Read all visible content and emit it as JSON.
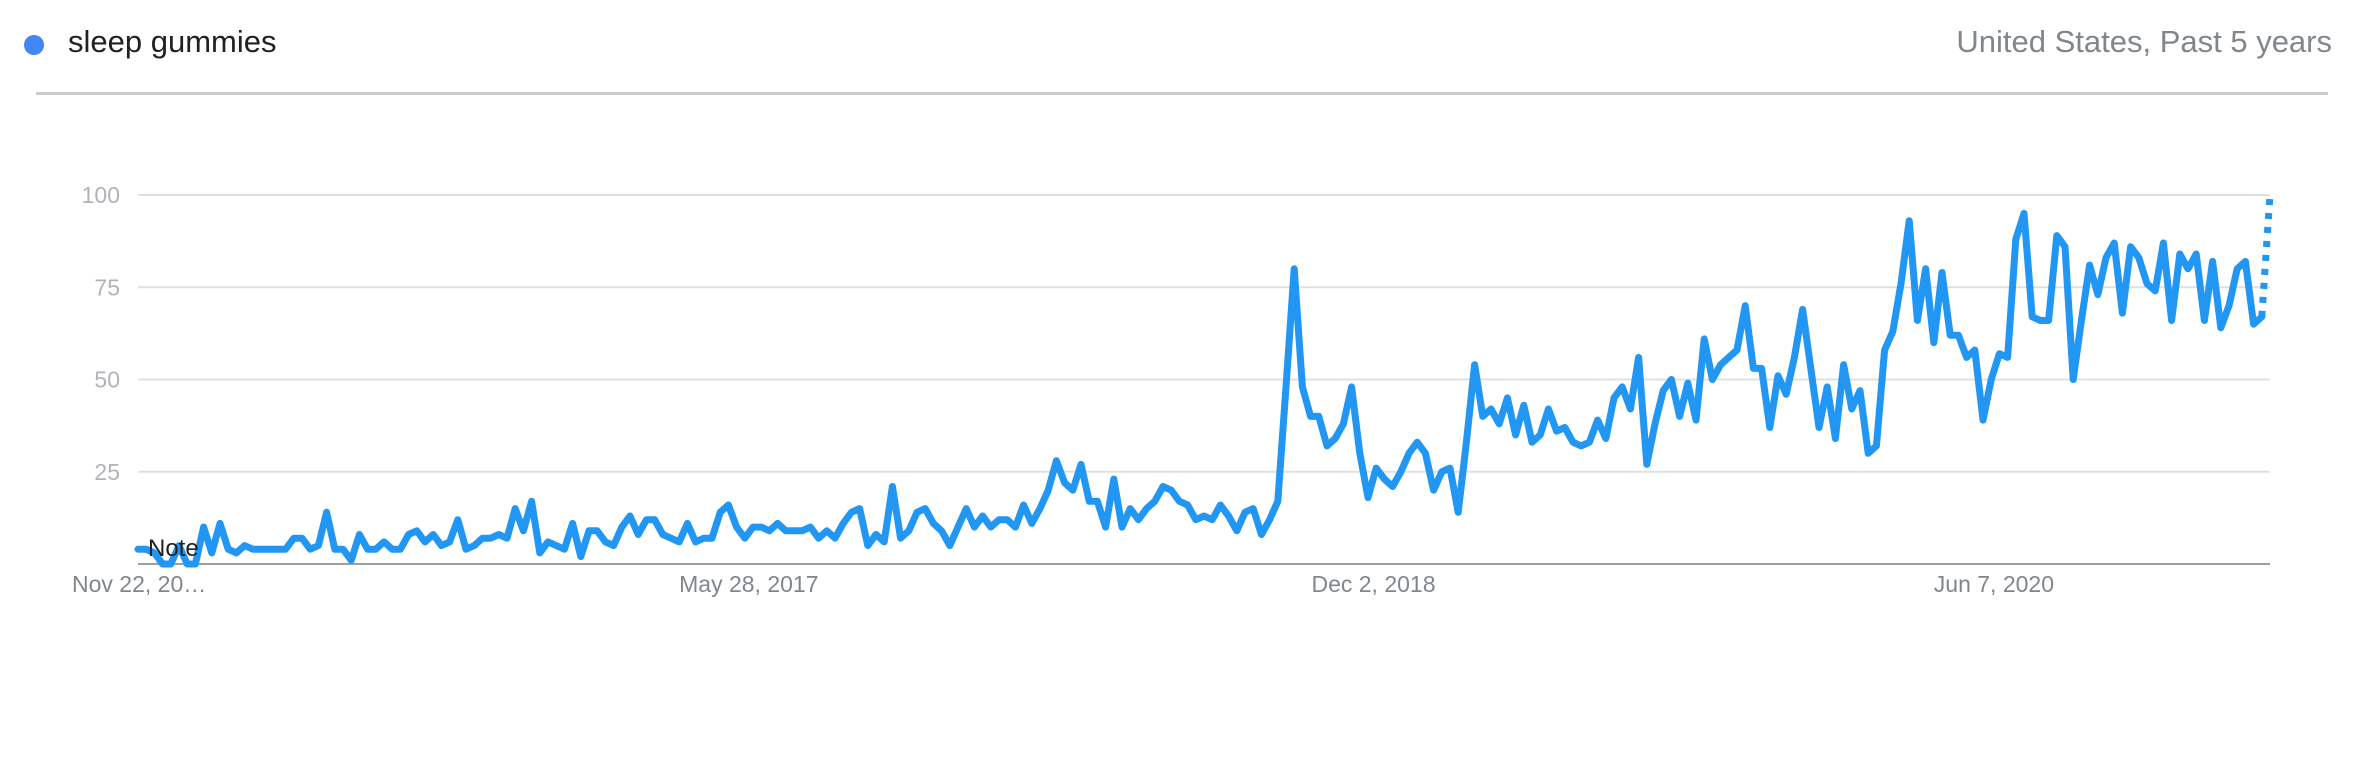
{
  "header": {
    "legend_color": "#4285f4",
    "term": "sleep gummies",
    "scope": "United States, Past 5 years"
  },
  "chart_data": {
    "type": "line",
    "series": [
      {
        "name": "sleep gummies",
        "color": "#2196f3",
        "values": [
          4,
          4,
          3,
          0,
          0,
          5,
          0,
          0,
          10,
          3,
          11,
          4,
          3,
          5,
          4,
          4,
          4,
          4,
          4,
          7,
          7,
          4,
          5,
          14,
          4,
          4,
          1,
          8,
          4,
          4,
          6,
          4,
          4,
          8,
          9,
          6,
          8,
          5,
          6,
          12,
          4,
          5,
          7,
          7,
          8,
          7,
          15,
          9,
          17,
          3,
          6,
          5,
          4,
          11,
          2,
          9,
          9,
          6,
          5,
          10,
          13,
          8,
          12,
          12,
          8,
          7,
          6,
          11,
          6,
          7,
          7,
          14,
          16,
          10,
          7,
          10,
          10,
          9,
          11,
          9,
          9,
          9,
          10,
          7,
          9,
          7,
          11,
          14,
          15,
          5,
          8,
          6,
          21,
          7,
          9,
          14,
          15,
          11,
          9,
          5,
          10,
          15,
          10,
          13,
          10,
          12,
          12,
          10,
          16,
          11,
          15,
          20,
          28,
          22,
          20,
          27,
          17,
          17,
          10,
          23,
          10,
          15,
          12,
          15,
          17,
          21,
          20,
          17,
          16,
          12,
          13,
          12,
          16,
          13,
          9,
          14,
          15,
          8,
          12,
          17,
          48,
          80,
          48,
          40,
          40,
          32,
          34,
          38,
          48,
          30,
          18,
          26,
          23,
          21,
          25,
          30,
          33,
          30,
          20,
          25,
          26,
          14,
          33,
          54,
          40,
          42,
          38,
          45,
          35,
          43,
          33,
          35,
          42,
          36,
          37,
          33,
          32,
          33,
          39,
          34,
          45,
          48,
          42,
          56,
          27,
          38,
          47,
          50,
          40,
          49,
          39,
          61,
          50,
          54,
          56,
          58,
          70,
          53,
          53,
          37,
          51,
          46,
          56,
          69,
          53,
          37,
          48,
          34,
          54,
          42,
          47,
          30,
          32,
          58,
          63,
          76,
          93,
          66,
          80,
          60,
          79,
          62,
          62,
          56,
          58,
          39,
          50,
          57,
          56,
          88,
          95,
          67,
          66,
          66,
          89,
          86,
          50,
          66,
          81,
          73,
          83,
          87,
          68,
          86,
          83,
          76,
          74,
          87,
          66,
          84,
          80,
          84,
          66,
          82,
          64,
          70,
          80,
          82,
          65,
          67
        ],
        "partial": [
          67,
          100
        ]
      }
    ],
    "x_tick_labels": [
      "Nov 22, 20…",
      "May 28, 2017",
      "Dec 2, 2018",
      "Jun 7, 2020"
    ],
    "y_ticks": [
      25,
      50,
      75,
      100
    ],
    "y_tick_labels": [
      "25",
      "50",
      "75",
      "100"
    ],
    "ylim": [
      0,
      100
    ],
    "grid": true,
    "note_label": "Note"
  }
}
